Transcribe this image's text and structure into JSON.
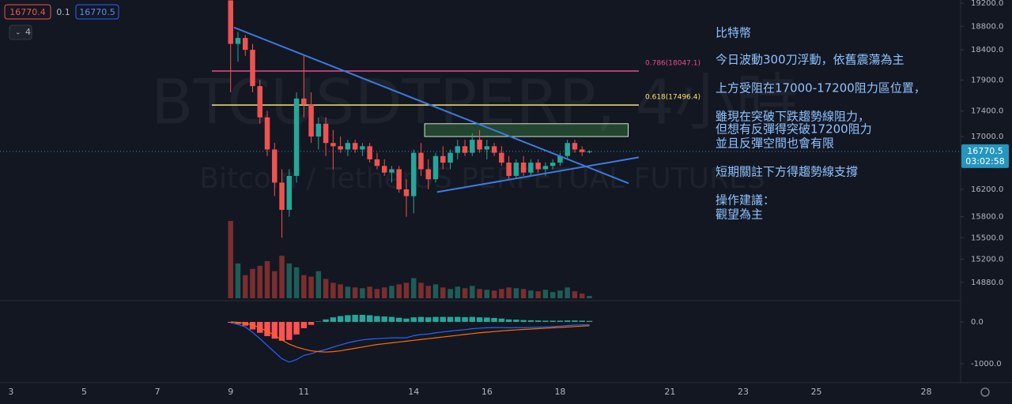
{
  "chart_data": {
    "type": "candlestick",
    "symbol_watermark": "BTCUSDTPERP, 4小時",
    "name_watermark": "Bitcoin / TetherUS PERPETUAL FUTURES",
    "legend": {
      "bid": "16770.4",
      "spread": "0.1",
      "ask": "16770.5",
      "indicators": "4"
    },
    "last_price": {
      "value": 16770.5,
      "label": "16770.5",
      "countdown": "03:02:58",
      "color": "#2596be"
    },
    "log_scale": true,
    "up_color": "#26a69a",
    "down_color": "#ef5350",
    "xlim": [
      2.7,
      28.94
    ],
    "xticks": [
      3,
      5,
      7,
      9,
      11,
      14,
      16,
      18,
      21,
      23,
      25,
      28
    ],
    "ylim": [
      14667,
      19256
    ],
    "yticks": [
      {
        "value": 19200,
        "label": "19200.0"
      },
      {
        "value": 18800,
        "label": "18800.0"
      },
      {
        "value": 18400,
        "label": "18400.0"
      },
      {
        "value": 17900,
        "label": "17900.0"
      },
      {
        "value": 17400,
        "label": "17400.0"
      },
      {
        "value": 17000,
        "label": "17000.0"
      },
      {
        "value": 16200,
        "label": "16200.0"
      },
      {
        "value": 15800,
        "label": "15800.0"
      },
      {
        "value": 15500,
        "label": "15500.0"
      },
      {
        "value": 15200,
        "label": "15200.0"
      },
      {
        "value": 14880,
        "label": "14880.0"
      }
    ],
    "x": [
      9.0,
      9.2,
      9.4,
      9.6,
      9.8,
      10.0,
      10.2,
      10.4,
      10.6,
      10.8,
      11.0,
      11.2,
      11.4,
      11.6,
      11.8,
      12.0,
      12.2,
      12.4,
      12.6,
      12.8,
      13.0,
      13.2,
      13.4,
      13.6,
      13.8,
      14.0,
      14.2,
      14.4,
      14.6,
      14.8,
      15.0,
      15.2,
      15.4,
      15.6,
      15.8,
      16.0,
      16.2,
      16.4,
      16.6,
      16.8,
      17.0,
      17.2,
      17.4,
      17.6,
      17.8,
      18.0,
      18.2,
      18.4,
      18.6,
      18.8
    ],
    "ohlc": [
      [
        19250,
        19250,
        17700,
        18500
      ],
      [
        18500,
        18700,
        18200,
        18600
      ],
      [
        18600,
        18650,
        18300,
        18400
      ],
      [
        18400,
        18500,
        17700,
        17800
      ],
      [
        17800,
        17900,
        17200,
        17300
      ],
      [
        17300,
        17400,
        16700,
        16800
      ],
      [
        16800,
        16900,
        16100,
        16300
      ],
      [
        16300,
        16500,
        15500,
        15900
      ],
      [
        15900,
        16500,
        15800,
        16400
      ],
      [
        16400,
        17700,
        16300,
        17600
      ],
      [
        17600,
        18300,
        17300,
        17500
      ],
      [
        17500,
        17700,
        16900,
        17000
      ],
      [
        17000,
        17300,
        16800,
        17200
      ],
      [
        17200,
        17300,
        16700,
        16900
      ],
      [
        16900,
        17100,
        16500,
        16850
      ],
      [
        16850,
        17000,
        16750,
        16800
      ],
      [
        16800,
        16950,
        16700,
        16900
      ],
      [
        16900,
        16950,
        16750,
        16800
      ],
      [
        16800,
        16900,
        16700,
        16850
      ],
      [
        16850,
        16900,
        16600,
        16650
      ],
      [
        16650,
        16750,
        16500,
        16550
      ],
      [
        16550,
        16650,
        16400,
        16450
      ],
      [
        16450,
        16550,
        16300,
        16500
      ],
      [
        16500,
        16550,
        16150,
        16200
      ],
      [
        16200,
        16350,
        15800,
        16100
      ],
      [
        16100,
        16800,
        15850,
        16750
      ],
      [
        16750,
        16900,
        16400,
        16500
      ],
      [
        16500,
        16650,
        16200,
        16350
      ],
      [
        16350,
        16750,
        16300,
        16700
      ],
      [
        16700,
        16850,
        16500,
        16600
      ],
      [
        16600,
        16800,
        16500,
        16750
      ],
      [
        16750,
        16950,
        16650,
        16850
      ],
      [
        16850,
        16950,
        16700,
        16750
      ],
      [
        16750,
        17050,
        16700,
        16950
      ],
      [
        16950,
        17100,
        16750,
        16800
      ],
      [
        16800,
        16950,
        16650,
        16850
      ],
      [
        16850,
        16900,
        16700,
        16750
      ],
      [
        16750,
        16850,
        16550,
        16600
      ],
      [
        16600,
        16700,
        16350,
        16400
      ],
      [
        16400,
        16650,
        16350,
        16600
      ],
      [
        16600,
        16700,
        16400,
        16450
      ],
      [
        16450,
        16650,
        16400,
        16600
      ],
      [
        16600,
        16650,
        16450,
        16500
      ],
      [
        16500,
        16600,
        16400,
        16550
      ],
      [
        16550,
        16650,
        16500,
        16600
      ],
      [
        16600,
        16750,
        16550,
        16700
      ],
      [
        16700,
        16950,
        16650,
        16900
      ],
      [
        16900,
        16950,
        16750,
        16800
      ],
      [
        16800,
        16850,
        16700,
        16760
      ],
      [
        16760,
        16790,
        16740,
        16770
      ]
    ],
    "volume": [
      100,
      45,
      30,
      38,
      42,
      48,
      35,
      55,
      45,
      40,
      30,
      28,
      35,
      25,
      20,
      18,
      15,
      14,
      13,
      15,
      12,
      14,
      16,
      18,
      20,
      26,
      20,
      16,
      18,
      14,
      12,
      15,
      13,
      16,
      12,
      11,
      10,
      12,
      14,
      13,
      12,
      10,
      9,
      11,
      8,
      10,
      14,
      9,
      6,
      3
    ],
    "y2lim": [
      -1358,
      490
    ],
    "y2ticks": [
      {
        "value": 0,
        "label": "0.0"
      },
      {
        "value": -1000,
        "label": "-1000.0"
      }
    ],
    "series": [
      {
        "name": "MACD",
        "color": "#2962ff",
        "axis": "y2",
        "values": [
          -20,
          -60,
          -120,
          -250,
          -400,
          -560,
          -720,
          -880,
          -960,
          -900,
          -800,
          -760,
          -700,
          -660,
          -600,
          -550,
          -500,
          -460,
          -430,
          -410,
          -400,
          -390,
          -380,
          -380,
          -380,
          -330,
          -300,
          -290,
          -260,
          -240,
          -220,
          -200,
          -185,
          -160,
          -150,
          -140,
          -135,
          -135,
          -140,
          -135,
          -135,
          -130,
          -125,
          -120,
          -110,
          -100,
          -85,
          -75,
          -70,
          -65
        ]
      },
      {
        "name": "Signal",
        "color": "#ff6d00",
        "axis": "y2",
        "values": [
          0,
          -10,
          -30,
          -70,
          -140,
          -220,
          -320,
          -430,
          -530,
          -600,
          -650,
          -690,
          -710,
          -720,
          -710,
          -690,
          -660,
          -630,
          -600,
          -570,
          -540,
          -520,
          -500,
          -480,
          -460,
          -440,
          -420,
          -400,
          -380,
          -360,
          -340,
          -320,
          -300,
          -280,
          -260,
          -245,
          -230,
          -215,
          -200,
          -190,
          -180,
          -170,
          -160,
          -150,
          -140,
          -130,
          -120,
          -110,
          -100,
          -90
        ]
      },
      {
        "name": "Histogram",
        "axis": "y2",
        "values": [
          -20,
          -50,
          -90,
          -180,
          -260,
          -340,
          -400,
          -450,
          -430,
          -300,
          -150,
          -70,
          10,
          60,
          110,
          140,
          160,
          170,
          170,
          160,
          140,
          130,
          120,
          100,
          80,
          110,
          120,
          110,
          120,
          120,
          120,
          120,
          115,
          120,
          110,
          105,
          95,
          80,
          60,
          55,
          45,
          40,
          35,
          30,
          30,
          30,
          35,
          35,
          30,
          25
        ]
      }
    ],
    "levels": [
      {
        "value": 18047.1,
        "label": "0.786(18047.1)",
        "color": "#e84a8c"
      },
      {
        "value": 17496.4,
        "label": "0.618(17496.4)",
        "color": "#f5e56b"
      }
    ],
    "zone": {
      "x": [
        14.3,
        19.86
      ],
      "y": [
        17000,
        17200
      ],
      "color": "#4caf50"
    },
    "trendlines": [
      {
        "x": [
          9.09,
          19.87
        ],
        "y": [
          18780,
          16290
        ],
        "color": "#3d7be0"
      },
      {
        "x": [
          14.64,
          20.15
        ],
        "y": [
          16160,
          16680
        ],
        "color": "#3d7be0"
      }
    ],
    "notes": [
      "比特幣",
      "今日波動300刀浮動，依舊震蕩為主",
      "上方受阻在17000-17200阻力區位置，",
      "雖現在突破下跌趨勢線阻力，",
      "但想有反彈得突破17200阻力",
      "並且反彈空間也會有限",
      "短期關註下方得趨勢線支撐",
      "操作建議：",
      "觀望為主"
    ]
  }
}
